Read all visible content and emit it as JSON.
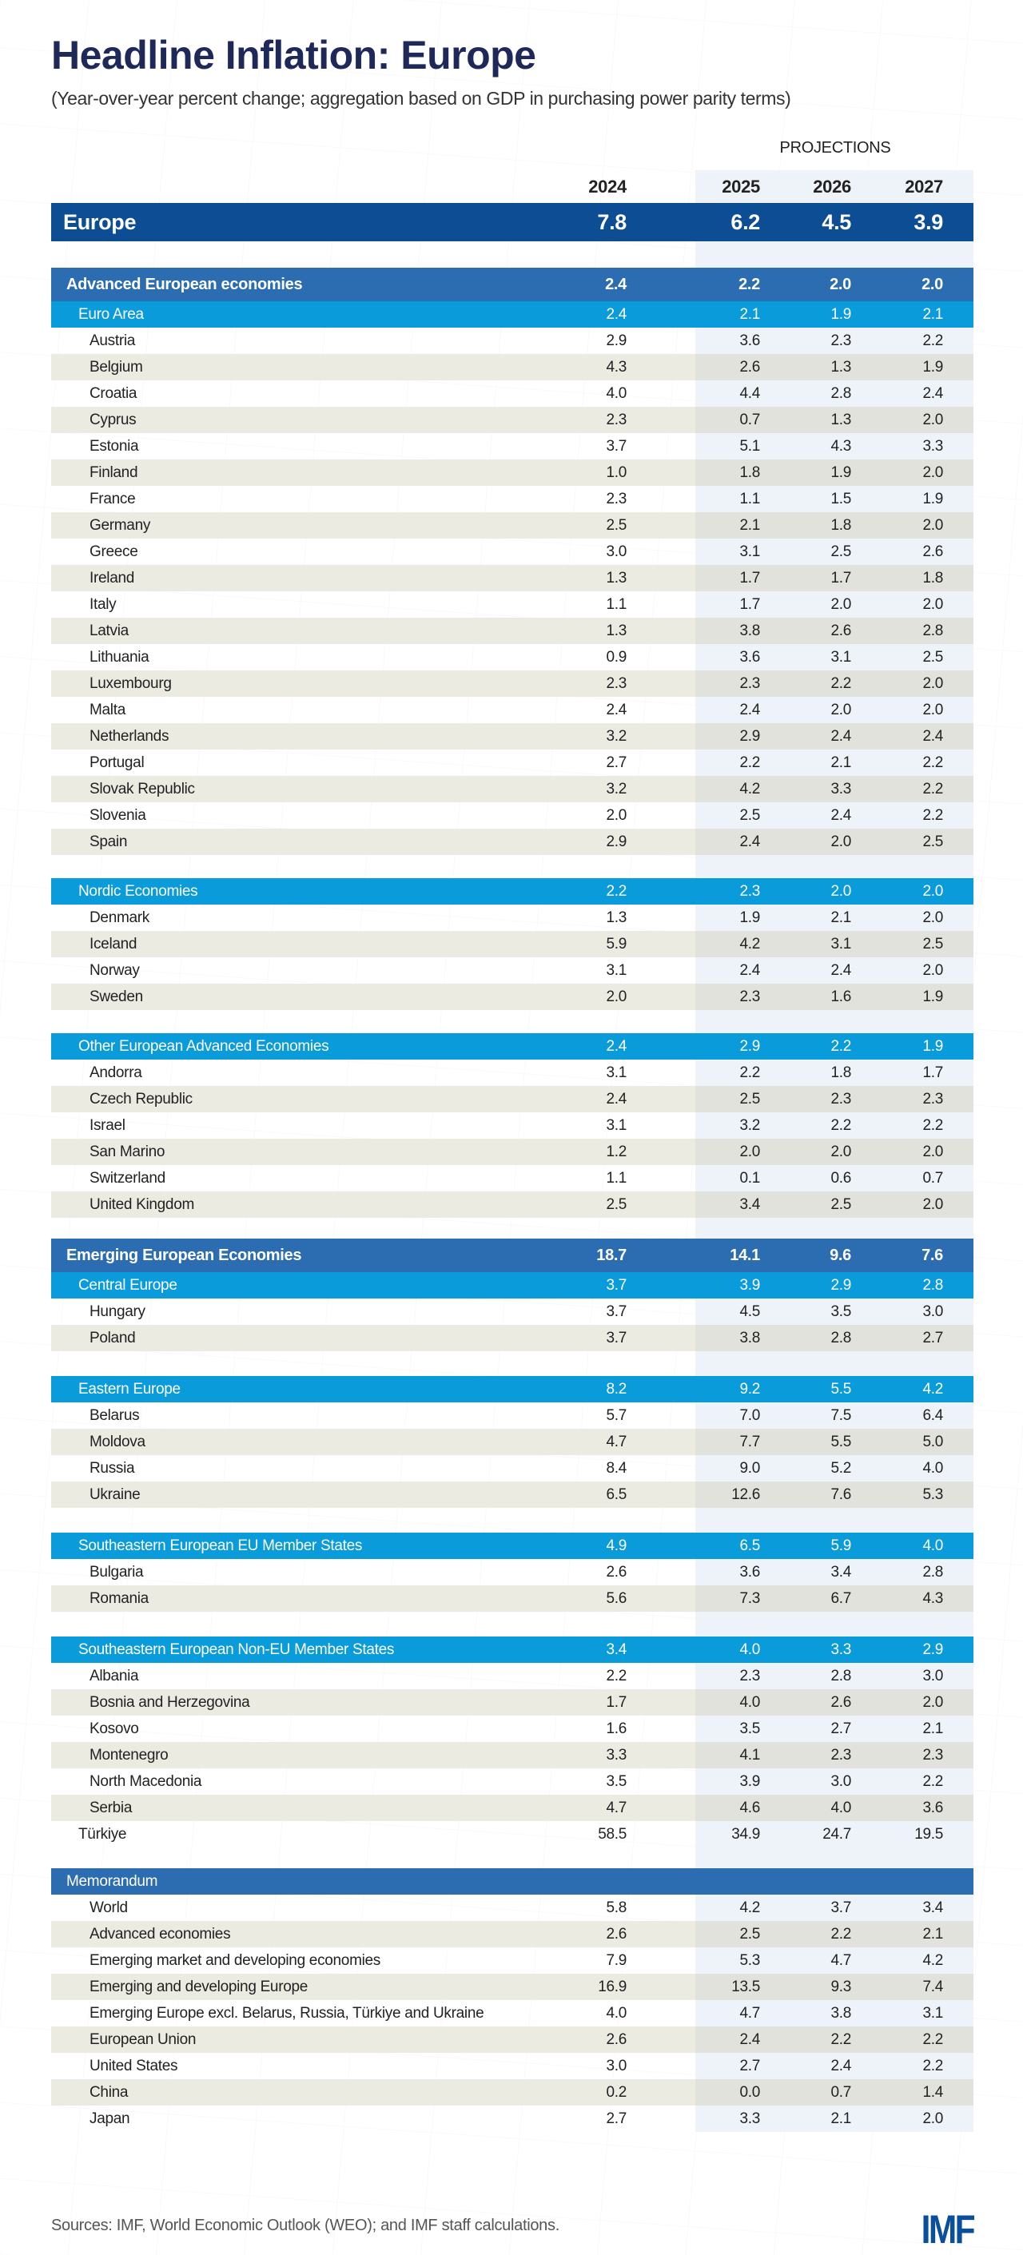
{
  "title": "Headline Inflation: Europe",
  "subtitle": "(Year-over-year percent change; aggregation based on GDP in purchasing power parity terms)",
  "projections_label": "PROJECTIONS",
  "years": [
    "2024",
    "2025",
    "2026",
    "2027"
  ],
  "colors": {
    "total": "#0d4d93",
    "group": "#2b6db0",
    "subgroup": "#0a9bdb",
    "alt_row": "#ecebe2",
    "title": "#1e2859"
  },
  "total": {
    "label": "Europe",
    "values": [
      "7.8",
      "6.2",
      "4.5",
      "3.9"
    ]
  },
  "groups": [
    {
      "label": "Advanced European economies",
      "values": [
        "2.4",
        "2.2",
        "2.0",
        "2.0"
      ],
      "subgroups": [
        {
          "label": "Euro Area",
          "values": [
            "2.4",
            "2.1",
            "1.9",
            "2.1"
          ],
          "rows": [
            {
              "label": "Austria",
              "values": [
                "2.9",
                "3.6",
                "2.3",
                "2.2"
              ]
            },
            {
              "label": "Belgium",
              "values": [
                "4.3",
                "2.6",
                "1.3",
                "1.9"
              ]
            },
            {
              "label": "Croatia",
              "values": [
                "4.0",
                "4.4",
                "2.8",
                "2.4"
              ]
            },
            {
              "label": "Cyprus",
              "values": [
                "2.3",
                "0.7",
                "1.3",
                "2.0"
              ]
            },
            {
              "label": "Estonia",
              "values": [
                "3.7",
                "5.1",
                "4.3",
                "3.3"
              ]
            },
            {
              "label": "Finland",
              "values": [
                "1.0",
                "1.8",
                "1.9",
                "2.0"
              ]
            },
            {
              "label": "France",
              "values": [
                "2.3",
                "1.1",
                "1.5",
                "1.9"
              ]
            },
            {
              "label": "Germany",
              "values": [
                "2.5",
                "2.1",
                "1.8",
                "2.0"
              ]
            },
            {
              "label": "Greece",
              "values": [
                "3.0",
                "3.1",
                "2.5",
                "2.6"
              ]
            },
            {
              "label": "Ireland",
              "values": [
                "1.3",
                "1.7",
                "1.7",
                "1.8"
              ]
            },
            {
              "label": "Italy",
              "values": [
                "1.1",
                "1.7",
                "2.0",
                "2.0"
              ]
            },
            {
              "label": "Latvia",
              "values": [
                "1.3",
                "3.8",
                "2.6",
                "2.8"
              ]
            },
            {
              "label": "Lithuania",
              "values": [
                "0.9",
                "3.6",
                "3.1",
                "2.5"
              ]
            },
            {
              "label": "Luxembourg",
              "values": [
                "2.3",
                "2.3",
                "2.2",
                "2.0"
              ]
            },
            {
              "label": "Malta",
              "values": [
                "2.4",
                "2.4",
                "2.0",
                "2.0"
              ]
            },
            {
              "label": "Netherlands",
              "values": [
                "3.2",
                "2.9",
                "2.4",
                "2.4"
              ]
            },
            {
              "label": "Portugal",
              "values": [
                "2.7",
                "2.2",
                "2.1",
                "2.2"
              ]
            },
            {
              "label": "Slovak Republic",
              "values": [
                "3.2",
                "4.2",
                "3.3",
                "2.2"
              ]
            },
            {
              "label": "Slovenia",
              "values": [
                "2.0",
                "2.5",
                "2.4",
                "2.2"
              ]
            },
            {
              "label": "Spain",
              "values": [
                "2.9",
                "2.4",
                "2.0",
                "2.5"
              ]
            }
          ]
        },
        {
          "label": "Nordic Economies",
          "values": [
            "2.2",
            "2.3",
            "2.0",
            "2.0"
          ],
          "rows": [
            {
              "label": "Denmark",
              "values": [
                "1.3",
                "1.9",
                "2.1",
                "2.0"
              ]
            },
            {
              "label": "Iceland",
              "values": [
                "5.9",
                "4.2",
                "3.1",
                "2.5"
              ]
            },
            {
              "label": "Norway",
              "values": [
                "3.1",
                "2.4",
                "2.4",
                "2.0"
              ]
            },
            {
              "label": "Sweden",
              "values": [
                "2.0",
                "2.3",
                "1.6",
                "1.9"
              ]
            }
          ]
        },
        {
          "label": "Other European Advanced Economies",
          "values": [
            "2.4",
            "2.9",
            "2.2",
            "1.9"
          ],
          "rows": [
            {
              "label": "Andorra",
              "values": [
                "3.1",
                "2.2",
                "1.8",
                "1.7"
              ]
            },
            {
              "label": "Czech Republic",
              "values": [
                "2.4",
                "2.5",
                "2.3",
                "2.3"
              ]
            },
            {
              "label": "Israel",
              "values": [
                "3.1",
                "3.2",
                "2.2",
                "2.2"
              ]
            },
            {
              "label": "San Marino",
              "values": [
                "1.2",
                "2.0",
                "2.0",
                "2.0"
              ]
            },
            {
              "label": "Switzerland",
              "values": [
                "1.1",
                "0.1",
                "0.6",
                "0.7"
              ]
            },
            {
              "label": "United Kingdom",
              "values": [
                "2.5",
                "3.4",
                "2.5",
                "2.0"
              ]
            }
          ]
        }
      ]
    },
    {
      "label": "Emerging European Economies",
      "values": [
        "18.7",
        "14.1",
        "9.6",
        "7.6"
      ],
      "subgroups": [
        {
          "label": "Central Europe",
          "values": [
            "3.7",
            "3.9",
            "2.9",
            "2.8"
          ],
          "rows": [
            {
              "label": "Hungary",
              "values": [
                "3.7",
                "4.5",
                "3.5",
                "3.0"
              ]
            },
            {
              "label": "Poland",
              "values": [
                "3.7",
                "3.8",
                "2.8",
                "2.7"
              ]
            }
          ]
        },
        {
          "label": "Eastern Europe",
          "values": [
            "8.2",
            "9.2",
            "5.5",
            "4.2"
          ],
          "rows": [
            {
              "label": "Belarus",
              "values": [
                "5.7",
                "7.0",
                "7.5",
                "6.4"
              ]
            },
            {
              "label": "Moldova",
              "values": [
                "4.7",
                "7.7",
                "5.5",
                "5.0"
              ]
            },
            {
              "label": "Russia",
              "values": [
                "8.4",
                "9.0",
                "5.2",
                "4.0"
              ]
            },
            {
              "label": "Ukraine",
              "values": [
                "6.5",
                "12.6",
                "7.6",
                "5.3"
              ]
            }
          ]
        },
        {
          "label": "Southeastern European EU Member States",
          "values": [
            "4.9",
            "6.5",
            "5.9",
            "4.0"
          ],
          "rows": [
            {
              "label": "Bulgaria",
              "values": [
                "2.6",
                "3.6",
                "3.4",
                "2.8"
              ]
            },
            {
              "label": "Romania",
              "values": [
                "5.6",
                "7.3",
                "6.7",
                "4.3"
              ]
            }
          ]
        },
        {
          "label": "Southeastern European Non-EU Member States",
          "values": [
            "3.4",
            "4.0",
            "3.3",
            "2.9"
          ],
          "rows": [
            {
              "label": "Albania",
              "values": [
                "2.2",
                "2.3",
                "2.8",
                "3.0"
              ]
            },
            {
              "label": "Bosnia and Herzegovina",
              "values": [
                "1.7",
                "4.0",
                "2.6",
                "2.0"
              ]
            },
            {
              "label": "Kosovo",
              "values": [
                "1.6",
                "3.5",
                "2.7",
                "2.1"
              ]
            },
            {
              "label": "Montenegro",
              "values": [
                "3.3",
                "4.1",
                "2.3",
                "2.3"
              ]
            },
            {
              "label": "North Macedonia",
              "values": [
                "3.5",
                "3.9",
                "3.0",
                "2.2"
              ]
            },
            {
              "label": "Serbia",
              "values": [
                "4.7",
                "4.6",
                "4.0",
                "3.6"
              ]
            }
          ]
        }
      ],
      "direct": [
        {
          "label": "Türkiye",
          "values": [
            "58.5",
            "34.9",
            "24.7",
            "19.5"
          ]
        }
      ]
    }
  ],
  "memorandum": {
    "label": "Memorandum",
    "rows": [
      {
        "label": "World",
        "values": [
          "5.8",
          "4.2",
          "3.7",
          "3.4"
        ]
      },
      {
        "label": "Advanced economies",
        "values": [
          "2.6",
          "2.5",
          "2.2",
          "2.1"
        ]
      },
      {
        "label": "Emerging market and developing economies",
        "values": [
          "7.9",
          "5.3",
          "4.7",
          "4.2"
        ]
      },
      {
        "label": "Emerging and developing Europe",
        "values": [
          "16.9",
          "13.5",
          "9.3",
          "7.4"
        ]
      },
      {
        "label": "Emerging Europe excl. Belarus, Russia, Türkiye and Ukraine",
        "values": [
          "4.0",
          "4.7",
          "3.8",
          "3.1"
        ]
      },
      {
        "label": "European Union",
        "values": [
          "2.6",
          "2.4",
          "2.2",
          "2.2"
        ]
      },
      {
        "label": "United States",
        "values": [
          "3.0",
          "2.7",
          "2.4",
          "2.2"
        ]
      },
      {
        "label": "China",
        "values": [
          "0.2",
          "0.0",
          "0.7",
          "1.4"
        ]
      },
      {
        "label": "Japan",
        "values": [
          "2.7",
          "3.3",
          "2.1",
          "2.0"
        ]
      }
    ]
  },
  "sources": "Sources: IMF, World Economic Outlook (WEO); and IMF staff calculations.",
  "logo_text": "IMF"
}
